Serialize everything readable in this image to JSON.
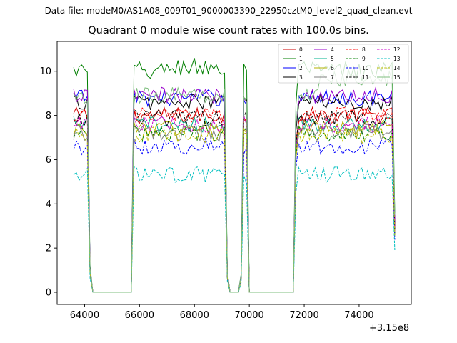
{
  "figure": {
    "suptitle": "Data file: modeM0/AS1A08_009T01_9000003390_22950cztM0_level2_quad_clean.evt",
    "title": "Quadrant 0 module wise count rates with 100.0s bins.",
    "x_offset_label": "+3.15e8"
  },
  "chart_data": {
    "type": "line",
    "title": "Quadrant 0 module wise count rates with 100.0s bins.",
    "xlabel": "",
    "ylabel": "",
    "x_offset": 315000000,
    "xlim": [
      63000,
      75900
    ],
    "ylim": [
      -0.55,
      11.35
    ],
    "xticks": [
      64000,
      66000,
      68000,
      70000,
      72000,
      74000
    ],
    "xtick_labels": [
      "64000",
      "66000",
      "68000",
      "70000",
      "72000",
      "74000"
    ],
    "yticks": [
      0,
      2,
      4,
      6,
      8,
      10
    ],
    "ytick_labels": [
      "0",
      "2",
      "4",
      "6",
      "8",
      "10"
    ],
    "grid": false,
    "legend_position": "top-right",
    "legend_columns": 4,
    "bin_seconds": 100,
    "segments": [
      {
        "on_start": 63600,
        "on_end": 64100,
        "drop_end": 64300
      },
      {
        "rise_start": 65700,
        "on_start": 65800,
        "on_end": 69150,
        "drop_end": 69350
      },
      {
        "rise_start": 69700,
        "on_start": 69800,
        "on_end": 69950,
        "drop_end": 70100
      },
      {
        "rise_start": 71600,
        "on_start": 71700,
        "on_end": 75200,
        "drop_end": 75300
      }
    ],
    "series": [
      {
        "name": "0",
        "color": "#cc0000",
        "dash": "solid",
        "level": 8.0
      },
      {
        "name": "1",
        "color": "#007f00",
        "dash": "solid",
        "level": 10.0
      },
      {
        "name": "2",
        "color": "#0000ff",
        "dash": "solid",
        "level": 8.8
      },
      {
        "name": "3",
        "color": "#000000",
        "dash": "solid",
        "level": 8.6
      },
      {
        "name": "4",
        "color": "#9900cc",
        "dash": "solid",
        "level": 8.9
      },
      {
        "name": "5",
        "color": "#00b38f",
        "dash": "solid",
        "level": 7.6
      },
      {
        "name": "6",
        "color": "#b3b300",
        "dash": "solid",
        "level": 7.4
      },
      {
        "name": "7",
        "color": "#808080",
        "dash": "solid",
        "level": 7.2
      },
      {
        "name": "8",
        "color": "#ff0000",
        "dash": "dashed",
        "level": 8.0
      },
      {
        "name": "9",
        "color": "#008000",
        "dash": "dashed",
        "level": 7.2
      },
      {
        "name": "10",
        "color": "#0000ff",
        "dash": "dashed",
        "level": 6.6
      },
      {
        "name": "11",
        "color": "#000000",
        "dash": "dashed",
        "level": 7.9
      },
      {
        "name": "12",
        "color": "#cc00cc",
        "dash": "dashed",
        "level": 7.6
      },
      {
        "name": "13",
        "color": "#00bfbf",
        "dash": "dashed",
        "level": 5.3
      },
      {
        "name": "14",
        "color": "#bfbf00",
        "dash": "dashed",
        "level": 7.1
      },
      {
        "name": "15",
        "color": "#7fbf7f",
        "dash": "solid",
        "level": 8.9
      }
    ]
  }
}
